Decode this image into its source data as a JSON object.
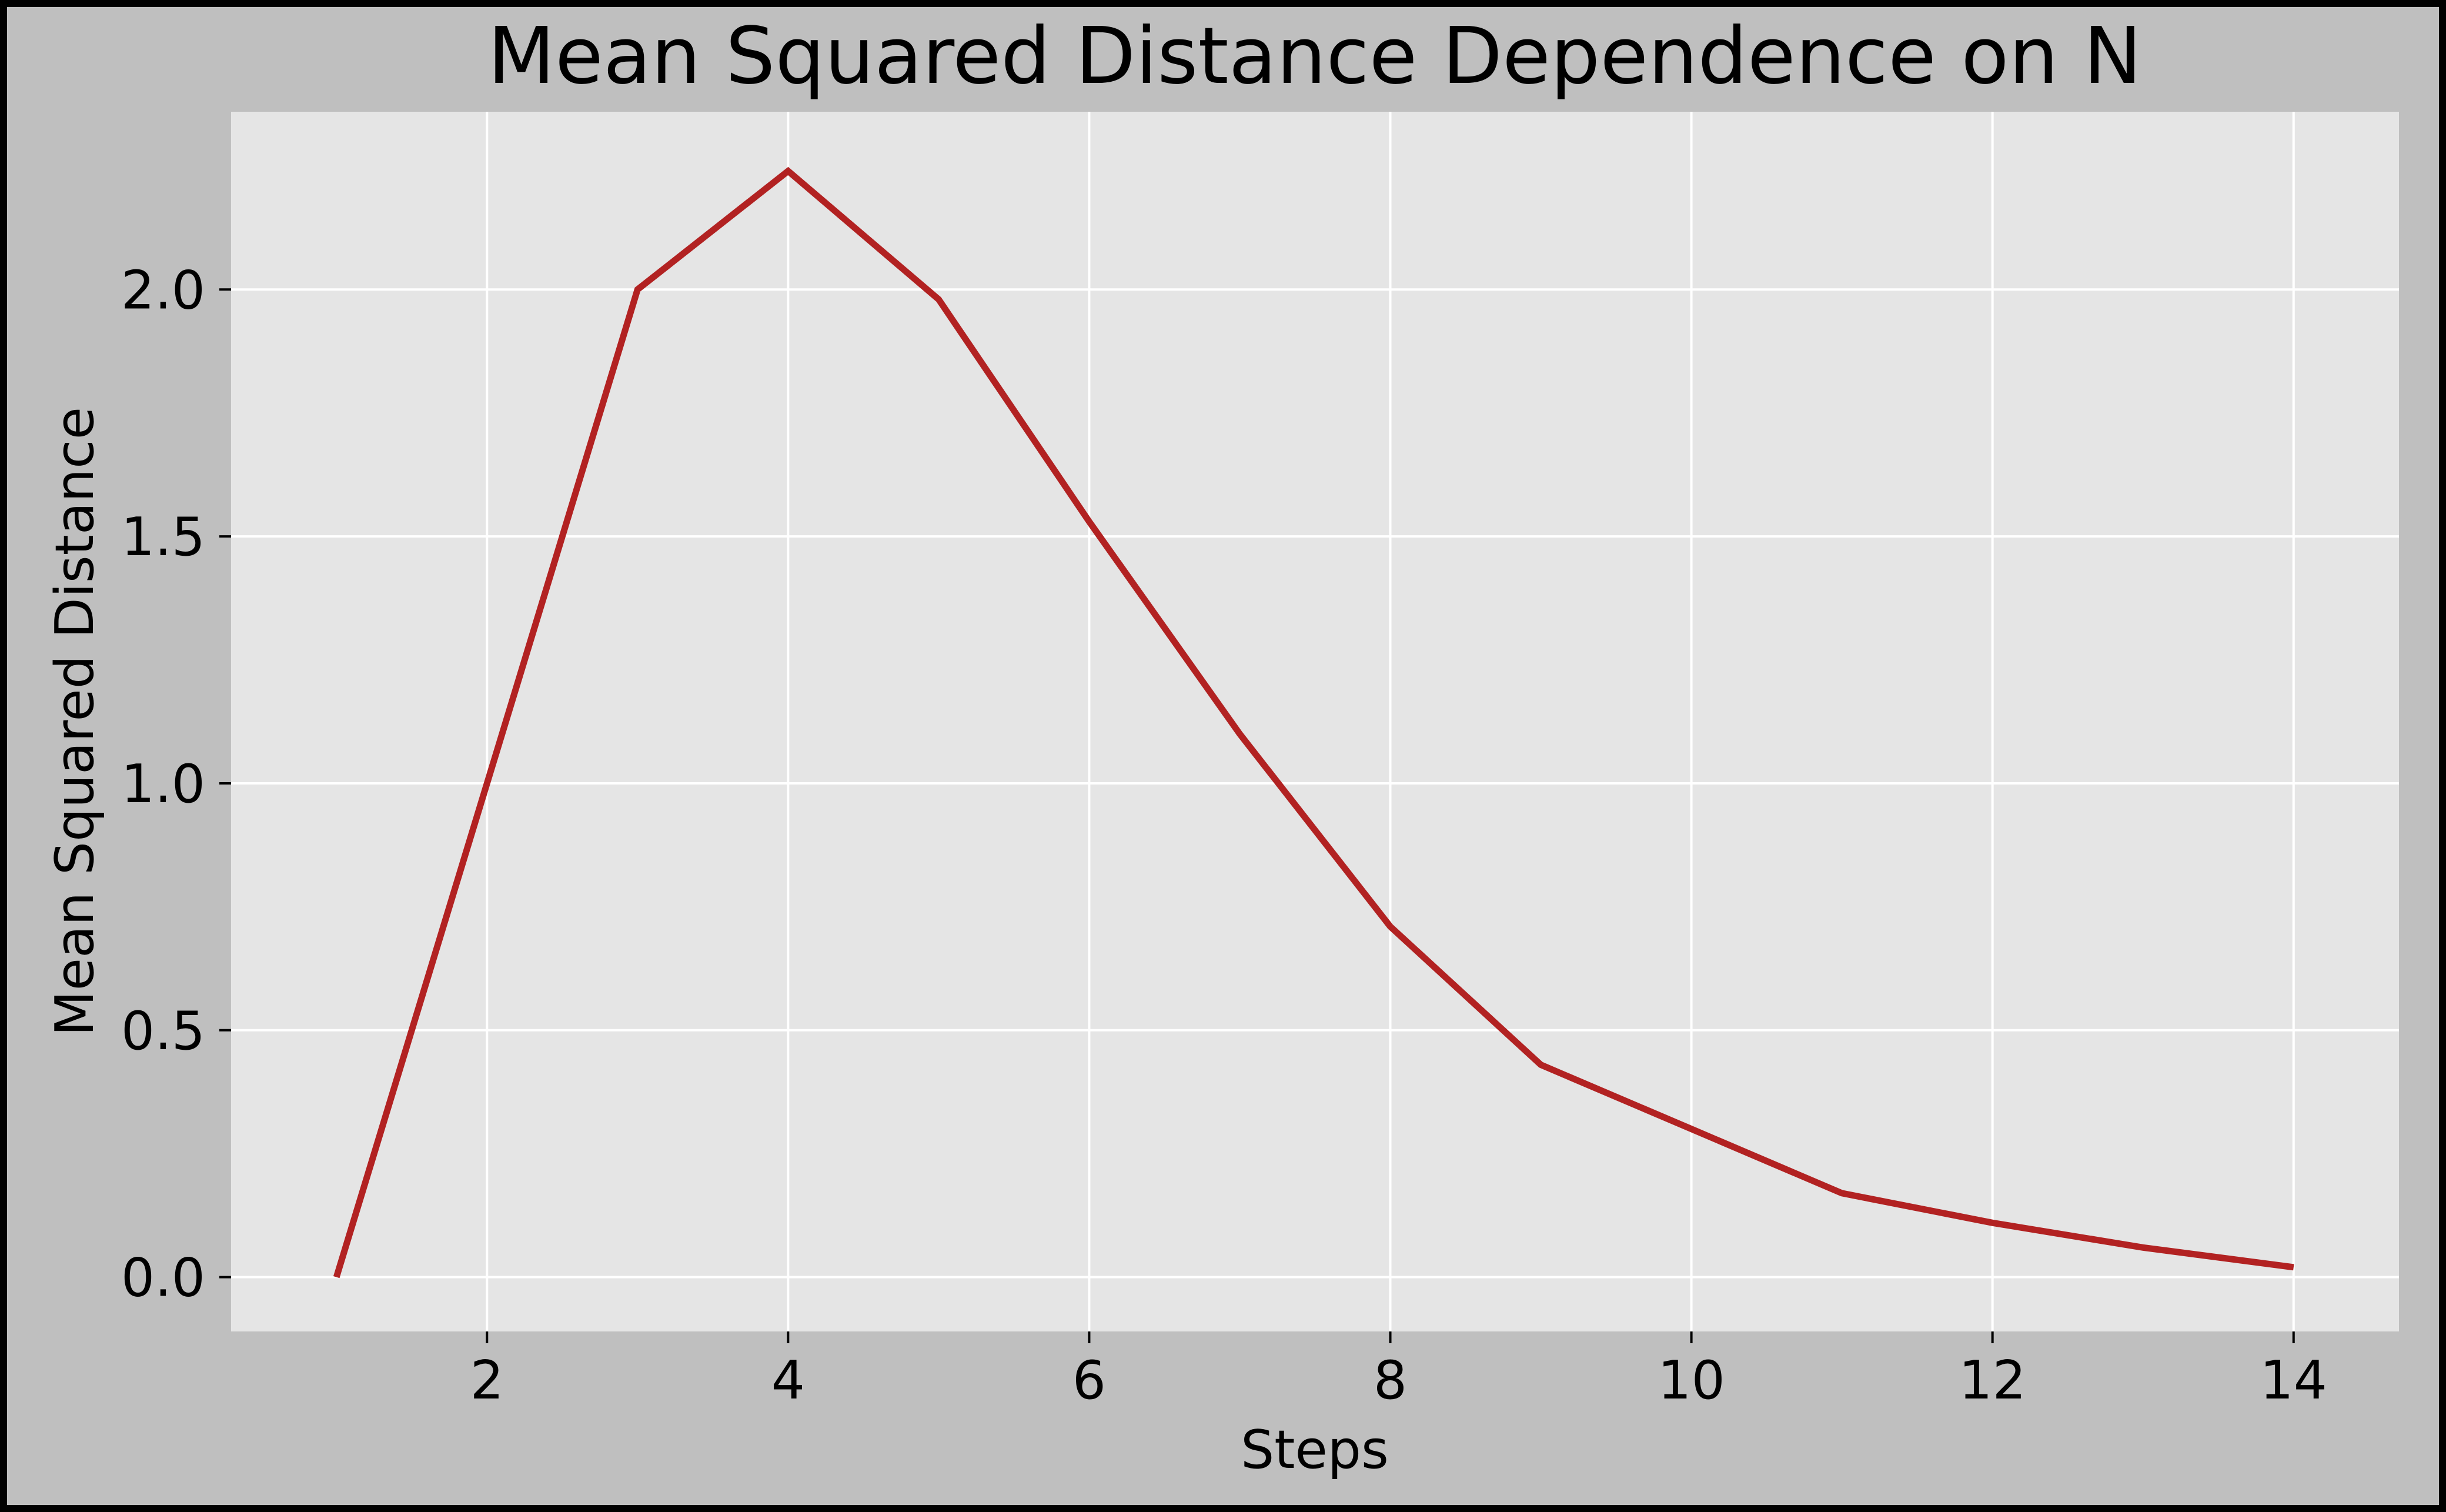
{
  "chart_data": {
    "type": "line",
    "title": "Mean Squared Distance Dependence on N",
    "xlabel": "Steps",
    "ylabel": "Mean Squared Distance",
    "xlim": [
      0.3,
      14.7
    ],
    "ylim": [
      -0.11,
      2.36
    ],
    "x_ticks": [
      2,
      4,
      6,
      8,
      10,
      12,
      14
    ],
    "x_tick_labels": [
      "2",
      "4",
      "6",
      "8",
      "10",
      "12",
      "14"
    ],
    "y_ticks": [
      0.0,
      0.5,
      1.0,
      1.5,
      2.0
    ],
    "y_tick_labels": [
      "0.0",
      "0.5",
      "1.0",
      "1.5",
      "2.0"
    ],
    "grid": true,
    "legend": "none",
    "series": [
      {
        "x": [
          1,
          2,
          3,
          4,
          5,
          6,
          7,
          8,
          9,
          10,
          11,
          12,
          13,
          14
        ],
        "y": [
          0.0,
          1.0,
          2.0,
          2.24,
          1.98,
          1.53,
          1.1,
          0.71,
          0.43,
          0.3,
          0.17,
          0.11,
          0.06,
          0.02
        ],
        "color": "#b22222"
      }
    ]
  },
  "colors": {
    "figure_background": "#bfbfbf",
    "plot_background": "#e5e5e5",
    "grid": "#ffffff",
    "frame": "#000000",
    "line": "#b22222"
  }
}
